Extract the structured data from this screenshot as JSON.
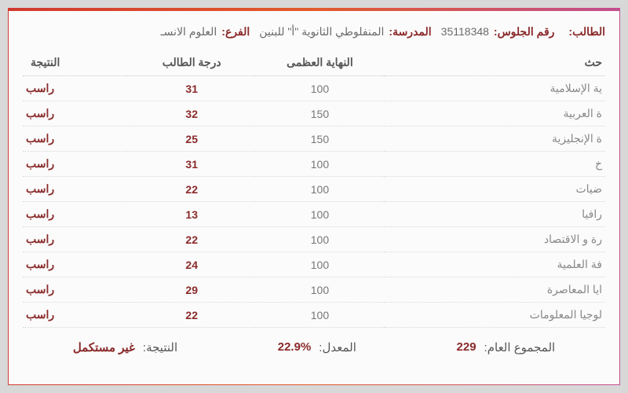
{
  "header": {
    "student_name_label": "الطالب:",
    "student_name_value": "",
    "seat_label": "رقم الجلوس:",
    "seat_value": "35118348",
    "school_label": "المدرسة:",
    "school_value": "المنفلوطي الثانوية \"أ\" للبنين",
    "branch_label": "الفرع:",
    "branch_value": "العلوم الانسـ"
  },
  "columns": {
    "subject": "حث",
    "max": "النهاية العظمى",
    "score": "درجة الطالب",
    "result": "النتيجة"
  },
  "rows": [
    {
      "subject": "ية الإسلامية",
      "max": "100",
      "score": "31",
      "result": "راسب"
    },
    {
      "subject": "ة العربية",
      "max": "150",
      "score": "32",
      "result": "راسب"
    },
    {
      "subject": "ة الإنجليزية",
      "max": "150",
      "score": "25",
      "result": "راسب"
    },
    {
      "subject": "خ",
      "max": "100",
      "score": "31",
      "result": "راسب"
    },
    {
      "subject": "ضيات",
      "max": "100",
      "score": "22",
      "result": "راسب"
    },
    {
      "subject": "رافيا",
      "max": "100",
      "score": "13",
      "result": "راسب"
    },
    {
      "subject": "رة و الاقتصاد",
      "max": "100",
      "score": "22",
      "result": "راسب"
    },
    {
      "subject": "فة العلمية",
      "max": "100",
      "score": "24",
      "result": "راسب"
    },
    {
      "subject": "ايا المعاصرة",
      "max": "100",
      "score": "29",
      "result": "راسب"
    },
    {
      "subject": "لوجيا المعلومات",
      "max": "100",
      "score": "22",
      "result": "راسب"
    }
  ],
  "summary": {
    "total_label": "المجموع العام:",
    "total_value": "229",
    "avg_label": "المعدل:",
    "avg_value": "22.9%",
    "status_label": "النتيجة:",
    "status_value": "غير مستكمل"
  },
  "colors": {
    "fail": "#8a2a2a",
    "text": "#6a6a6a",
    "border_dotted": "#d8d8d8"
  }
}
